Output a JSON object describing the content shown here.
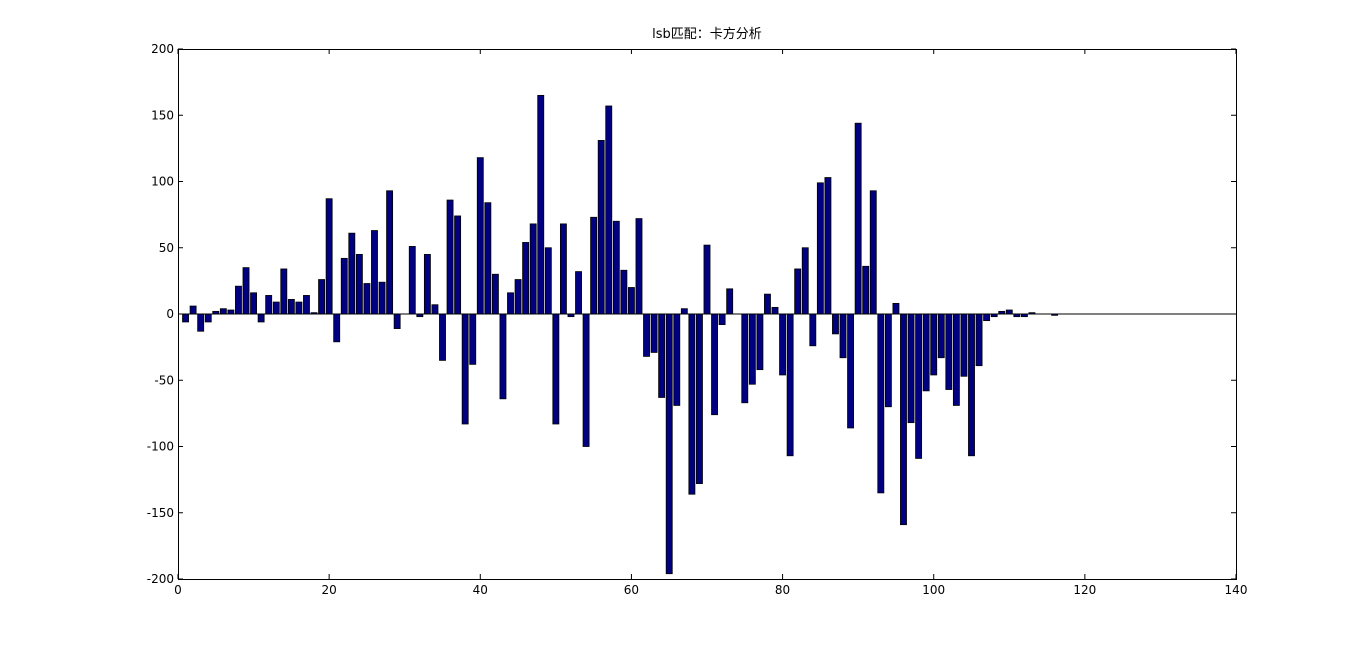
{
  "chart_data": {
    "type": "bar",
    "title": "lsb匹配：卡方分析",
    "xlabel": "",
    "ylabel": "",
    "xlim": [
      0,
      140
    ],
    "ylim": [
      -200,
      200
    ],
    "xticks": [
      "0",
      "20",
      "40",
      "60",
      "80",
      "100",
      "120",
      "140"
    ],
    "yticks": [
      "-200",
      "-150",
      "-100",
      "-50",
      "0",
      "50",
      "100",
      "150",
      "200"
    ],
    "grid": false,
    "bar_color": "#000080",
    "x": [
      1,
      2,
      3,
      4,
      5,
      6,
      7,
      8,
      9,
      10,
      11,
      12,
      13,
      14,
      15,
      16,
      17,
      18,
      19,
      20,
      21,
      22,
      23,
      24,
      25,
      26,
      27,
      28,
      29,
      30,
      31,
      32,
      33,
      34,
      35,
      36,
      37,
      38,
      39,
      40,
      41,
      42,
      43,
      44,
      45,
      46,
      47,
      48,
      49,
      50,
      51,
      52,
      53,
      54,
      55,
      56,
      57,
      58,
      59,
      60,
      61,
      62,
      63,
      64,
      65,
      66,
      67,
      68,
      69,
      70,
      71,
      72,
      73,
      74,
      75,
      76,
      77,
      78,
      79,
      80,
      81,
      82,
      83,
      84,
      85,
      86,
      87,
      88,
      89,
      90,
      91,
      92,
      93,
      94,
      95,
      96,
      97,
      98,
      99,
      100,
      101,
      102,
      103,
      104,
      105,
      106,
      107,
      108,
      109,
      110,
      111,
      112,
      113,
      114,
      115,
      116
    ],
    "values": [
      -6,
      6,
      -13,
      -6,
      2,
      4,
      3,
      21,
      35,
      16,
      -6,
      14,
      9,
      34,
      11,
      9,
      14,
      1,
      26,
      87,
      -21,
      42,
      61,
      45,
      23,
      63,
      24,
      93,
      -11,
      0,
      51,
      -2,
      45,
      7,
      -35,
      86,
      74,
      -83,
      -38,
      118,
      84,
      30,
      -64,
      16,
      26,
      54,
      68,
      165,
      50,
      -83,
      68,
      -2,
      32,
      -100,
      73,
      131,
      157,
      70,
      33,
      20,
      72,
      -32,
      -29,
      -63,
      -196,
      -69,
      4,
      -136,
      -128,
      52,
      -76,
      -8,
      19,
      0,
      -67,
      -53,
      -42,
      15,
      5,
      -46,
      -107,
      34,
      50,
      -24,
      99,
      103,
      -15,
      -33,
      -86,
      144,
      36,
      93,
      -135,
      -70,
      8,
      -159,
      -82,
      -109,
      -58,
      -46,
      -33,
      -57,
      -69,
      -47,
      -107,
      -39,
      -5,
      -2,
      2,
      3,
      -2,
      -2,
      1,
      0,
      0,
      -1
    ]
  }
}
